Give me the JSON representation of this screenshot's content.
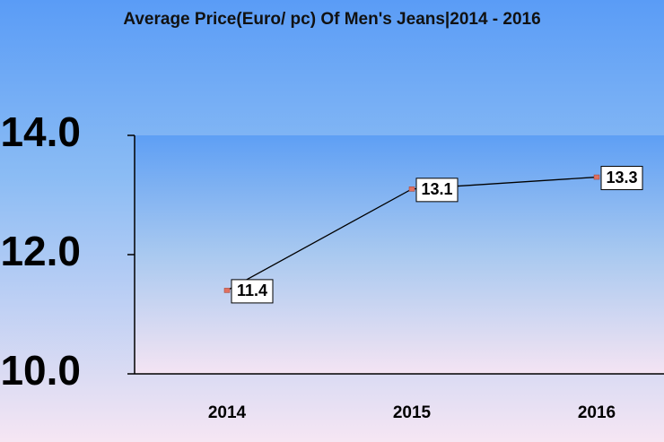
{
  "chart_data": {
    "type": "line",
    "title": "Average Price(Euro/ pc) Of Men's Jeans|2014 - 2016",
    "categories": [
      "2014",
      "2015",
      "2016"
    ],
    "series": [
      {
        "name": "Average Price",
        "color": "#000000",
        "values": [
          11.4,
          13.1,
          13.3
        ]
      }
    ],
    "ylim": [
      10,
      14
    ],
    "yticks": [
      {
        "value": 10,
        "label": "10.0"
      },
      {
        "value": 12,
        "label": "12.0"
      },
      {
        "value": 14,
        "label": "14.0"
      }
    ],
    "grid": false,
    "data_labels": true
  }
}
